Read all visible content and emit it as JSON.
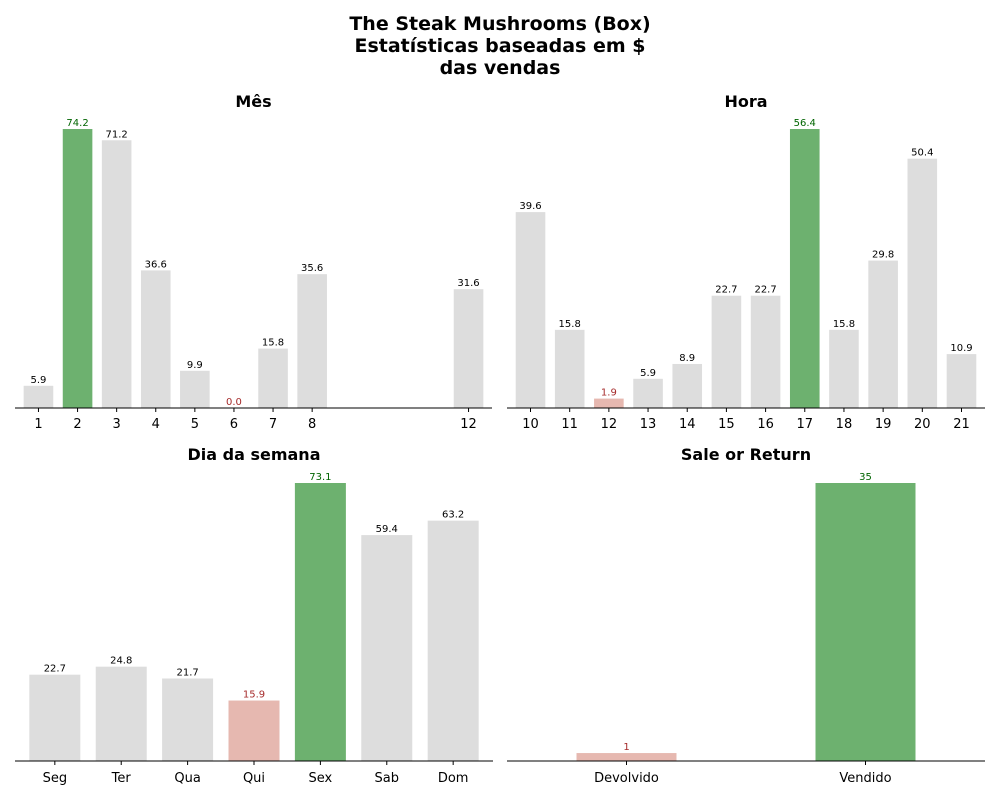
{
  "page": {
    "title_lines": [
      "The Steak Mushrooms (Box)",
      "Estatísticas baseadas em $",
      "das vendas"
    ]
  },
  "colors": {
    "neutral": "#dddddd",
    "max": "#6db16f",
    "min": "#e6b8b0",
    "max_label": "#006400",
    "min_label": "#a52a2a",
    "axis": "#000000"
  },
  "chart_data": [
    {
      "type": "bar",
      "title": "Mês",
      "axis": "numeric",
      "x": [
        1,
        2,
        3,
        4,
        5,
        6,
        7,
        8,
        12
      ],
      "tick_labels": [
        "1",
        "2",
        "3",
        "4",
        "5",
        "6",
        "7",
        "8",
        "12"
      ],
      "values": [
        5.9,
        74.2,
        71.2,
        36.6,
        9.9,
        0.0,
        15.8,
        35.6,
        31.6
      ],
      "value_labels": [
        "5.9",
        "74.2",
        "71.2",
        "36.6",
        "9.9",
        "0.0",
        "15.8",
        "35.6",
        "31.6"
      ],
      "highlight": {
        "max_index": 1,
        "min_index": 5
      }
    },
    {
      "type": "bar",
      "title": "Hora",
      "axis": "numeric",
      "x": [
        10,
        11,
        12,
        13,
        14,
        15,
        16,
        17,
        18,
        19,
        20,
        21
      ],
      "tick_labels": [
        "10",
        "11",
        "12",
        "13",
        "14",
        "15",
        "16",
        "17",
        "18",
        "19",
        "20",
        "21"
      ],
      "values": [
        39.6,
        15.8,
        1.9,
        5.9,
        8.9,
        22.7,
        22.7,
        56.4,
        15.8,
        29.8,
        50.4,
        10.9
      ],
      "value_labels": [
        "39.6",
        "15.8",
        "1.9",
        "5.9",
        "8.9",
        "22.7",
        "22.7",
        "56.4",
        "15.8",
        "29.8",
        "50.4",
        "10.9"
      ],
      "highlight": {
        "max_index": 7,
        "min_index": 2
      }
    },
    {
      "type": "bar",
      "title": "Dia da semana",
      "axis": "categorical",
      "categories": [
        "Seg",
        "Ter",
        "Qua",
        "Qui",
        "Sex",
        "Sab",
        "Dom"
      ],
      "values": [
        22.7,
        24.8,
        21.7,
        15.9,
        73.1,
        59.4,
        63.2
      ],
      "value_labels": [
        "22.7",
        "24.8",
        "21.7",
        "15.9",
        "73.1",
        "59.4",
        "63.2"
      ],
      "highlight": {
        "max_index": 4,
        "min_index": 3
      }
    },
    {
      "type": "bar",
      "title": "Sale or Return",
      "axis": "categorical",
      "categories": [
        "Devolvido",
        "Vendido"
      ],
      "values": [
        1,
        35
      ],
      "value_labels": [
        "1",
        "35"
      ],
      "highlight": {
        "max_index": 1,
        "min_index": 0
      }
    }
  ]
}
